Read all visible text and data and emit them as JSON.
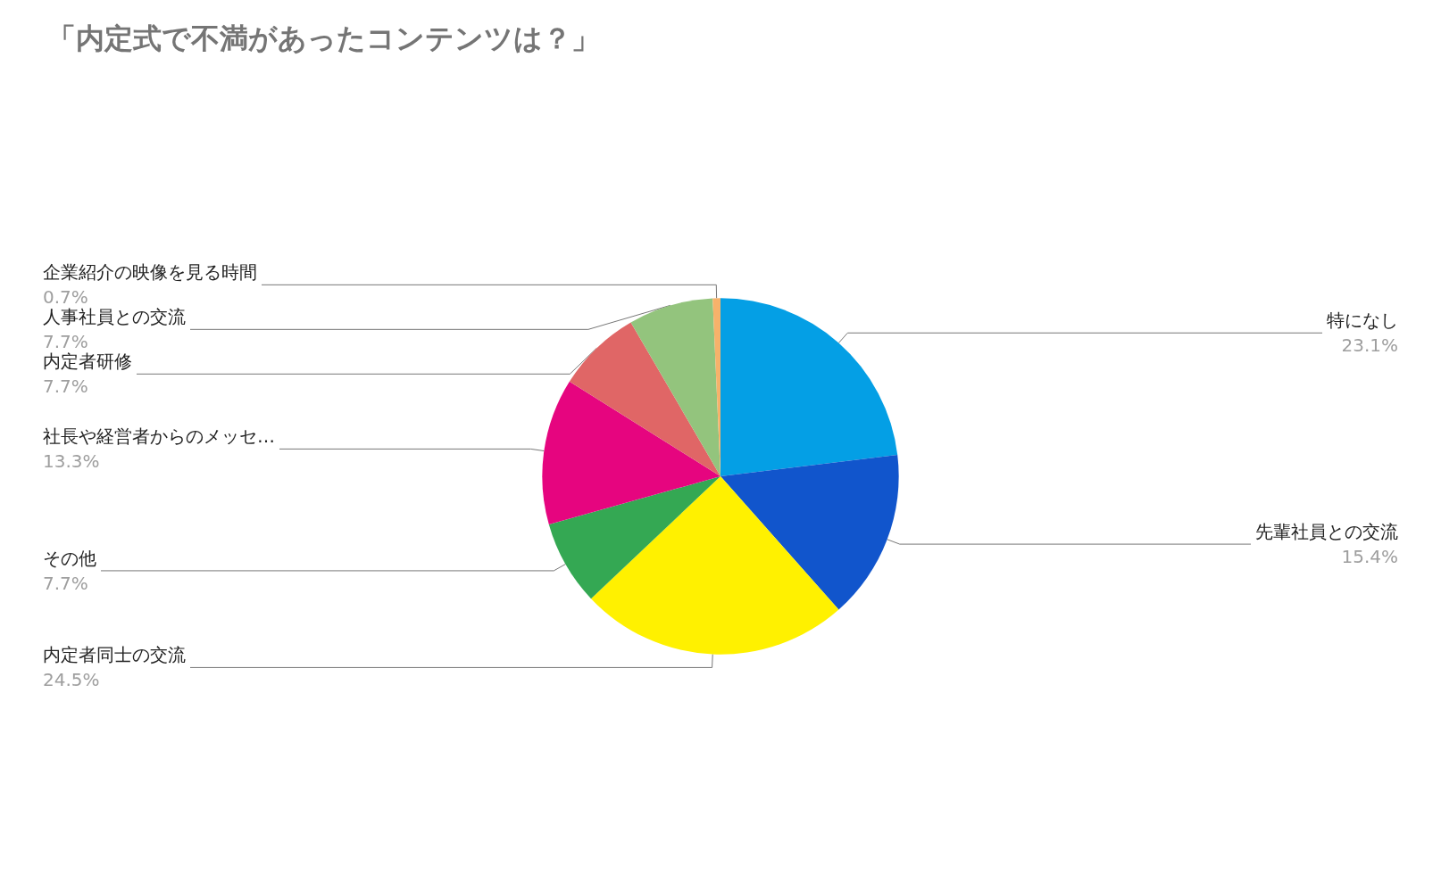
{
  "chart_data": {
    "type": "pie",
    "title": "「内定式で不満があったコンテンツは？」",
    "categories": [
      "特になし",
      "先輩社員との交流",
      "内定者同士の交流",
      "その他",
      "社長や経営者からのメッセ…",
      "内定者研修",
      "人事社員との交流",
      "企業紹介の映像を見る時間"
    ],
    "values": [
      23.1,
      15.4,
      24.5,
      7.7,
      13.3,
      7.7,
      7.7,
      0.7
    ],
    "value_labels": [
      "23.1%",
      "15.4%",
      "24.5%",
      "7.7%",
      "13.3%",
      "7.7%",
      "7.7%",
      "0.7%"
    ],
    "colors": [
      "#049fe5",
      "#1155cc",
      "#fff100",
      "#34a853",
      "#e6057f",
      "#e06666",
      "#93c47d",
      "#f6b26b"
    ]
  }
}
